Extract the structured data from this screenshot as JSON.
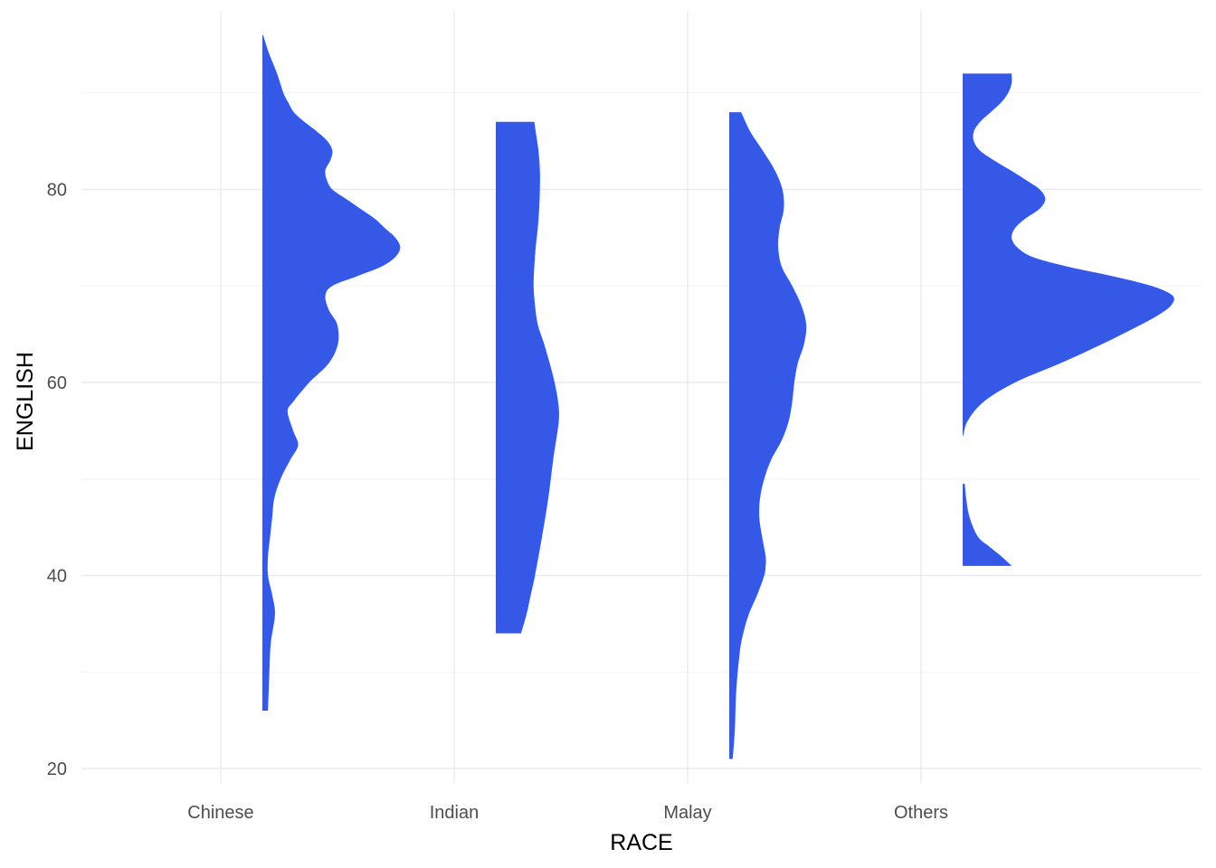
{
  "chart_data": {
    "type": "half-violin",
    "title": "",
    "xlabel": "RACE",
    "ylabel": "ENGLISH",
    "categories": [
      "Chinese",
      "Indian",
      "Malay",
      "Others"
    ],
    "ylim": [
      18.5,
      98.5
    ],
    "yticks": [
      20,
      40,
      60,
      80
    ],
    "y_minor_ticks": [
      30,
      50,
      70,
      90
    ],
    "grid": true,
    "legend": "none",
    "fill_color": "#3559e6",
    "series": [
      {
        "category": "Chinese",
        "range": [
          26,
          96
        ],
        "density": [
          [
            26,
            0.008
          ],
          [
            28,
            0.009
          ],
          [
            30,
            0.01
          ],
          [
            33,
            0.012
          ],
          [
            36,
            0.018
          ],
          [
            38,
            0.014
          ],
          [
            40,
            0.008
          ],
          [
            42,
            0.008
          ],
          [
            44,
            0.011
          ],
          [
            46,
            0.014
          ],
          [
            48,
            0.017
          ],
          [
            50,
            0.026
          ],
          [
            52,
            0.04
          ],
          [
            53.5,
            0.051
          ],
          [
            55,
            0.044
          ],
          [
            57,
            0.036
          ],
          [
            58,
            0.044
          ],
          [
            60,
            0.067
          ],
          [
            62,
            0.095
          ],
          [
            64,
            0.108
          ],
          [
            66,
            0.107
          ],
          [
            67.5,
            0.095
          ],
          [
            69,
            0.09
          ],
          [
            70,
            0.1
          ],
          [
            71,
            0.135
          ],
          [
            72,
            0.17
          ],
          [
            73,
            0.19
          ],
          [
            74,
            0.197
          ],
          [
            75,
            0.19
          ],
          [
            76,
            0.175
          ],
          [
            77,
            0.16
          ],
          [
            78,
            0.14
          ],
          [
            79,
            0.12
          ],
          [
            80,
            0.1
          ],
          [
            81,
            0.092
          ],
          [
            82,
            0.09
          ],
          [
            83,
            0.097
          ],
          [
            84,
            0.1
          ],
          [
            85,
            0.093
          ],
          [
            86,
            0.078
          ],
          [
            87,
            0.06
          ],
          [
            88,
            0.045
          ],
          [
            89,
            0.037
          ],
          [
            90,
            0.03
          ],
          [
            92,
            0.021
          ],
          [
            94,
            0.01
          ],
          [
            96,
            0.001
          ]
        ]
      },
      {
        "category": "Indian",
        "range": [
          34,
          87
        ],
        "density": [
          [
            34,
            0.036
          ],
          [
            36,
            0.044
          ],
          [
            38,
            0.05
          ],
          [
            40,
            0.056
          ],
          [
            44,
            0.066
          ],
          [
            48,
            0.075
          ],
          [
            52,
            0.082
          ],
          [
            56,
            0.09
          ],
          [
            58,
            0.089
          ],
          [
            60,
            0.084
          ],
          [
            62,
            0.077
          ],
          [
            64,
            0.069
          ],
          [
            66,
            0.06
          ],
          [
            68,
            0.056
          ],
          [
            70,
            0.054
          ],
          [
            72,
            0.055
          ],
          [
            74,
            0.057
          ],
          [
            76,
            0.06
          ],
          [
            78,
            0.062
          ],
          [
            80,
            0.063
          ],
          [
            82,
            0.063
          ],
          [
            84,
            0.061
          ],
          [
            86,
            0.057
          ],
          [
            87,
            0.055
          ]
        ]
      },
      {
        "category": "Malay",
        "range": [
          21,
          88
        ],
        "density": [
          [
            21,
            0.005
          ],
          [
            24,
            0.008
          ],
          [
            28,
            0.01
          ],
          [
            32,
            0.015
          ],
          [
            34,
            0.02
          ],
          [
            36,
            0.028
          ],
          [
            38,
            0.04
          ],
          [
            40,
            0.05
          ],
          [
            41,
            0.052
          ],
          [
            42,
            0.052
          ],
          [
            44,
            0.047
          ],
          [
            46,
            0.043
          ],
          [
            48,
            0.044
          ],
          [
            50,
            0.05
          ],
          [
            52,
            0.06
          ],
          [
            54,
            0.075
          ],
          [
            56,
            0.085
          ],
          [
            58,
            0.09
          ],
          [
            60,
            0.093
          ],
          [
            62,
            0.098
          ],
          [
            64,
            0.107
          ],
          [
            66,
            0.11
          ],
          [
            68,
            0.103
          ],
          [
            70,
            0.09
          ],
          [
            72,
            0.075
          ],
          [
            74,
            0.07
          ],
          [
            76,
            0.072
          ],
          [
            78,
            0.078
          ],
          [
            80,
            0.076
          ],
          [
            82,
            0.065
          ],
          [
            84,
            0.048
          ],
          [
            86,
            0.03
          ],
          [
            88,
            0.017
          ]
        ]
      },
      {
        "category": "Others",
        "range": [
          41,
          92
        ],
        "gap": [
          49.5,
          54.5
        ],
        "density": [
          [
            41,
            0.07
          ],
          [
            42,
            0.055
          ],
          [
            43,
            0.038
          ],
          [
            44,
            0.022
          ],
          [
            46,
            0.01
          ],
          [
            48,
            0.005
          ],
          [
            49.5,
            0.003
          ],
          [
            54.5,
            0.001
          ],
          [
            56,
            0.007
          ],
          [
            58,
            0.03
          ],
          [
            60,
            0.075
          ],
          [
            62,
            0.14
          ],
          [
            64,
            0.2
          ],
          [
            66,
            0.255
          ],
          [
            67,
            0.28
          ],
          [
            68,
            0.298
          ],
          [
            69,
            0.3
          ],
          [
            70,
            0.27
          ],
          [
            71,
            0.215
          ],
          [
            72,
            0.15
          ],
          [
            73,
            0.1
          ],
          [
            74,
            0.078
          ],
          [
            75,
            0.07
          ],
          [
            76,
            0.075
          ],
          [
            77,
            0.09
          ],
          [
            78,
            0.11
          ],
          [
            79,
            0.118
          ],
          [
            80,
            0.11
          ],
          [
            81,
            0.09
          ],
          [
            82,
            0.068
          ],
          [
            83,
            0.045
          ],
          [
            84,
            0.025
          ],
          [
            85,
            0.016
          ],
          [
            86,
            0.016
          ],
          [
            87,
            0.025
          ],
          [
            88,
            0.04
          ],
          [
            89,
            0.055
          ],
          [
            90,
            0.065
          ],
          [
            91,
            0.07
          ],
          [
            92,
            0.07
          ]
        ]
      }
    ]
  }
}
